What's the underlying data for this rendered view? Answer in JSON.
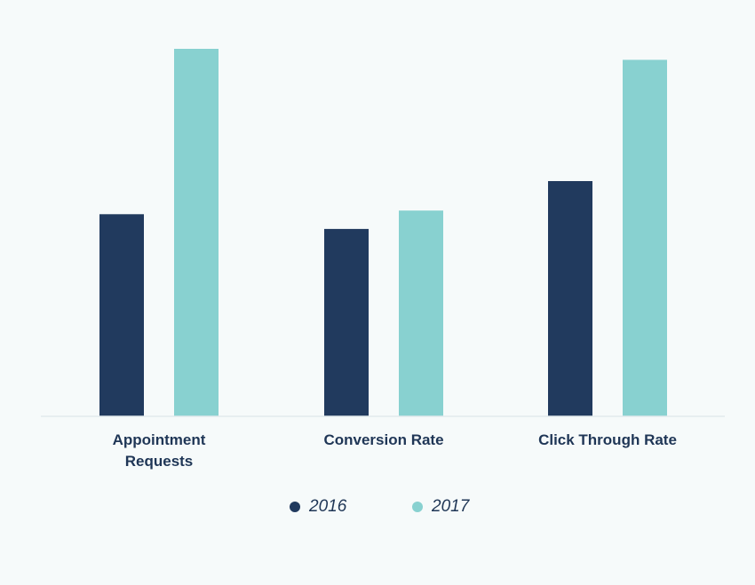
{
  "chart_data": {
    "type": "bar",
    "categories": [
      "Appointment\nRequests",
      "Conversion Rate",
      "Click Through Rate"
    ],
    "series": [
      {
        "name": "2016",
        "color": "#213a5e",
        "values": [
          55,
          51,
          64
        ]
      },
      {
        "name": "2017",
        "color": "#88d1d0",
        "values": [
          100,
          56,
          97
        ]
      }
    ],
    "ylim": [
      0,
      100
    ],
    "grid": false,
    "legend_position": "bottom-center"
  }
}
